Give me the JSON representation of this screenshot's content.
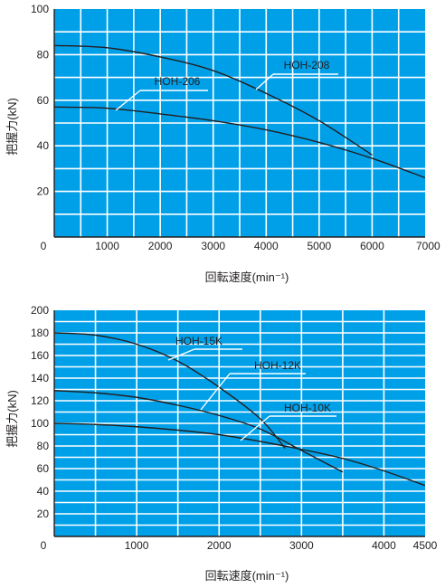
{
  "chart_data": [
    {
      "type": "line",
      "xlabel": "回転速度(min⁻¹)",
      "ylabel": "把握力(kN)",
      "xlim": [
        0,
        7000
      ],
      "ylim": [
        0,
        100
      ],
      "x_ticks": [
        "0",
        "1000",
        "2000",
        "3000",
        "4000",
        "5000",
        "6000",
        "7000"
      ],
      "y_ticks": [
        "20",
        "40",
        "60",
        "80",
        "100"
      ],
      "grid": true,
      "background": "#00a0e9",
      "series": [
        {
          "name": "HOH-208",
          "points": [
            [
              0,
              84
            ],
            [
              1000,
              83
            ],
            [
              2000,
              79
            ],
            [
              3000,
              73
            ],
            [
              4000,
              63
            ],
            [
              5000,
              51
            ],
            [
              6000,
              36
            ]
          ]
        },
        {
          "name": "HOH-206",
          "points": [
            [
              0,
              57
            ],
            [
              1000,
              56.5
            ],
            [
              2000,
              54
            ],
            [
              3000,
              51
            ],
            [
              4000,
              47
            ],
            [
              5000,
              41.5
            ],
            [
              6000,
              34.5
            ],
            [
              7000,
              26
            ]
          ]
        }
      ]
    },
    {
      "type": "line",
      "xlabel": "回転速度(min⁻¹)",
      "ylabel": "把握力(kN)",
      "xlim": [
        0,
        4500
      ],
      "ylim": [
        0,
        200
      ],
      "x_ticks": [
        "0",
        "1000",
        "2000",
        "3000",
        "4000",
        "4500"
      ],
      "y_ticks": [
        "20",
        "40",
        "60",
        "80",
        "100",
        "120",
        "140",
        "160",
        "180",
        "200"
      ],
      "grid": true,
      "background": "#00a0e9",
      "series": [
        {
          "name": "HOH-15K",
          "points": [
            [
              0,
              180
            ],
            [
              500,
              178
            ],
            [
              1000,
              170
            ],
            [
              1500,
              155
            ],
            [
              2000,
              132
            ],
            [
              2500,
              104
            ],
            [
              2800,
              78
            ]
          ]
        },
        {
          "name": "HOH-12K",
          "points": [
            [
              0,
              129
            ],
            [
              500,
              127
            ],
            [
              1000,
              123
            ],
            [
              1500,
              116
            ],
            [
              2000,
              107
            ],
            [
              2500,
              95
            ],
            [
              3000,
              76
            ],
            [
              3500,
              57
            ]
          ]
        },
        {
          "name": "HOH-10K",
          "points": [
            [
              0,
              100
            ],
            [
              500,
              99
            ],
            [
              1000,
              97
            ],
            [
              1500,
              94
            ],
            [
              2000,
              90
            ],
            [
              2500,
              84
            ],
            [
              3000,
              77
            ],
            [
              3500,
              69
            ],
            [
              4000,
              58
            ],
            [
              4500,
              45
            ]
          ]
        }
      ]
    }
  ]
}
